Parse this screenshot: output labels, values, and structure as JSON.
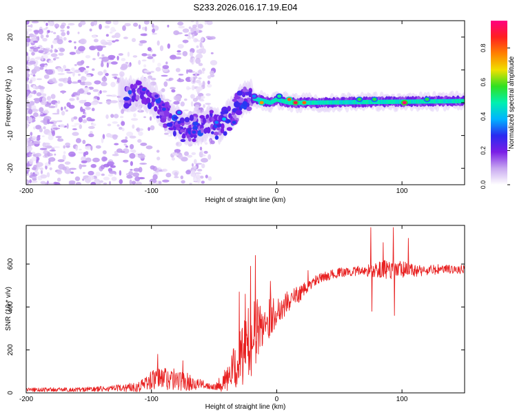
{
  "figure": {
    "title": "S233.2026.016.17.19.E04"
  },
  "chart_data": [
    {
      "type": "heatmap",
      "title": "S233.2026.016.17.19.E04",
      "xlabel": "Height of straight line (km)",
      "ylabel": "Frequency (Hz)",
      "xlim": [
        -200,
        150
      ],
      "ylim": [
        -25,
        25
      ],
      "xticks": [
        -200,
        -100,
        0,
        100
      ],
      "yticks": [
        -20,
        -10,
        0,
        10,
        20
      ],
      "colorbar": {
        "label": "Normalized spectral amplitude",
        "range": [
          0,
          0.96
        ],
        "ticks": [
          0.0,
          0.2,
          0.4,
          0.6,
          0.8
        ],
        "colormap": [
          "#ffffff",
          "#c8a8f0",
          "#7a1ee6",
          "#2a2af0",
          "#00b4ff",
          "#00f0b0",
          "#30e020",
          "#f0e000",
          "#ff8000",
          "#ff2020",
          "#ff0080"
        ]
      },
      "ridge": [
        {
          "x": -110,
          "f": 3
        },
        {
          "x": -100,
          "f": 2
        },
        {
          "x": -90,
          "f": -3
        },
        {
          "x": -80,
          "f": -6
        },
        {
          "x": -70,
          "f": -9
        },
        {
          "x": -55,
          "f": -6
        },
        {
          "x": -45,
          "f": -7
        },
        {
          "x": -35,
          "f": -3
        },
        {
          "x": -25,
          "f": 2
        },
        {
          "x": -15,
          "f": 1
        },
        {
          "x": -5,
          "f": 0
        },
        {
          "x": 0,
          "f": 1
        },
        {
          "x": 10,
          "f": 0
        },
        {
          "x": 20,
          "f": 0
        },
        {
          "x": 150,
          "f": 0.5
        }
      ],
      "peaks": [
        {
          "x": -106,
          "f": 4,
          "a": 0.3
        },
        {
          "x": -96,
          "f": 2,
          "a": 0.25
        },
        {
          "x": -90,
          "f": -2,
          "a": 0.3
        },
        {
          "x": -78,
          "f": -3,
          "a": 0.35
        },
        {
          "x": -66,
          "f": -9,
          "a": 0.3
        },
        {
          "x": -48,
          "f": -6,
          "a": 0.35
        },
        {
          "x": -42,
          "f": -5,
          "a": 0.4
        },
        {
          "x": -34,
          "f": -6,
          "a": 0.3
        },
        {
          "x": -18,
          "f": 2,
          "a": 0.35
        },
        {
          "x": -12,
          "f": 0,
          "a": 0.75
        },
        {
          "x": 2,
          "f": 2,
          "a": 0.5
        },
        {
          "x": 10,
          "f": 1,
          "a": 0.8
        },
        {
          "x": 15,
          "f": 0,
          "a": 0.9
        },
        {
          "x": 22,
          "f": 0,
          "a": 0.8
        },
        {
          "x": 66,
          "f": 1,
          "a": 0.55
        },
        {
          "x": 78,
          "f": 1,
          "a": 0.55
        },
        {
          "x": 102,
          "f": 0,
          "a": 0.95
        },
        {
          "x": 120,
          "f": 1,
          "a": 0.55
        }
      ]
    },
    {
      "type": "line",
      "xlabel": "Height of straight line (km)",
      "ylabel": "SNR (10 * v/v)",
      "xlim": [
        -200,
        150
      ],
      "ylim": [
        0,
        780
      ],
      "xticks": [
        -200,
        -100,
        0,
        100
      ],
      "yticks": [
        0,
        200,
        400,
        600
      ],
      "series": [
        {
          "name": "SNR",
          "color": "#e82020",
          "envelope": {
            "x": [
              -200,
              -160,
              -130,
              -110,
              -100,
              -90,
              -80,
              -70,
              -60,
              -50,
              -40,
              -30,
              -20,
              -10,
              0,
              10,
              20,
              30,
              40,
              50,
              60,
              70,
              80,
              90,
              100,
              110,
              120,
              130,
              140,
              150
            ],
            "base": [
              15,
              15,
              20,
              30,
              60,
              70,
              60,
              50,
              40,
              30,
              60,
              150,
              260,
              330,
              380,
              430,
              470,
              520,
              545,
              560,
              565,
              570,
              570,
              575,
              570,
              570,
              570,
              575,
              575,
              575
            ],
            "noise": [
              10,
              10,
              15,
              25,
              45,
              60,
              50,
              40,
              20,
              15,
              60,
              130,
              180,
              110,
              70,
              50,
              35,
              25,
              22,
              22,
              22,
              25,
              40,
              50,
              45,
              30,
              25,
              25,
              20,
              20
            ]
          },
          "spikes": [
            {
              "x": -95,
              "y": 180
            },
            {
              "x": -75,
              "y": 150
            },
            {
              "x": -30,
              "y": 470
            },
            {
              "x": -25,
              "y": 460
            },
            {
              "x": -21,
              "y": 590
            },
            {
              "x": -17,
              "y": 640
            },
            {
              "x": -5,
              "y": 520
            },
            {
              "x": 25,
              "y": 570
            },
            {
              "x": 75,
              "y": 770
            },
            {
              "x": 76,
              "y": 380
            },
            {
              "x": 85,
              "y": 700
            },
            {
              "x": 93,
              "y": 770
            },
            {
              "x": 94,
              "y": 360
            },
            {
              "x": 105,
              "y": 720
            }
          ]
        }
      ]
    }
  ]
}
